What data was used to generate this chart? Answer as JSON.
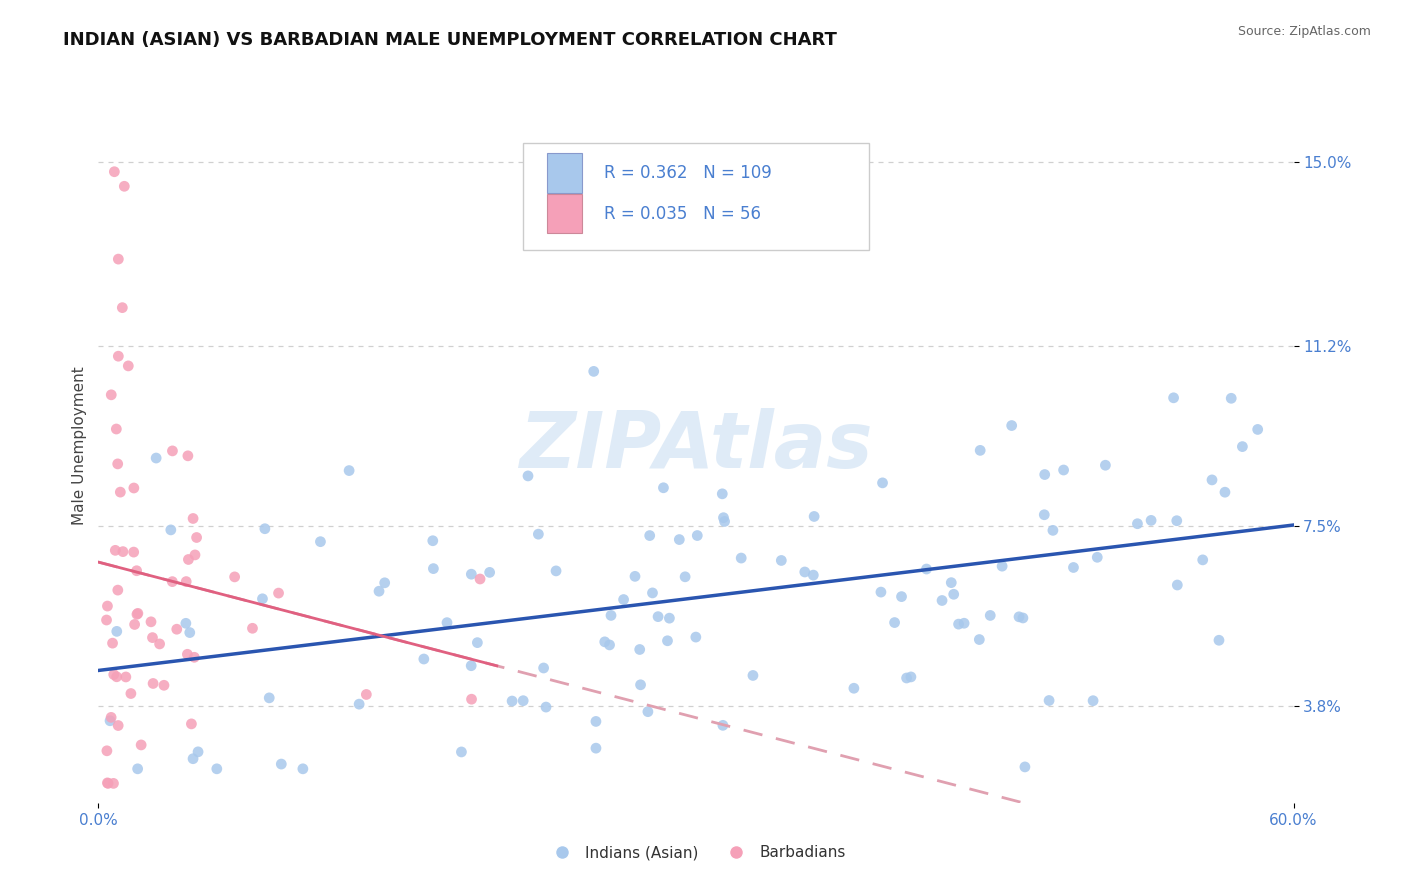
{
  "title": "INDIAN (ASIAN) VS BARBADIAN MALE UNEMPLOYMENT CORRELATION CHART",
  "source_text": "Source: ZipAtlas.com",
  "ylabel": "Male Unemployment",
  "xlim": [
    0.0,
    0.6
  ],
  "ylim": [
    0.018,
    0.165
  ],
  "ytick_vals": [
    0.038,
    0.075,
    0.112,
    0.15
  ],
  "ytick_labels": [
    "3.8%",
    "7.5%",
    "11.2%",
    "15.0%"
  ],
  "grid_color": "#d0d0d0",
  "background_color": "#ffffff",
  "indian_color": "#a8c8ec",
  "barbadian_color": "#f5a0b8",
  "indian_line_color": "#2a55b0",
  "barbadian_line_color": "#e06080",
  "barbadian_dash_color": "#e0a0b0",
  "legend_R1": "0.362",
  "legend_N1": "109",
  "legend_R2": "0.035",
  "legend_N2": "56",
  "legend_label1": "Indians (Asian)",
  "legend_label2": "Barbadians",
  "watermark": "ZIPAtlas",
  "title_fontsize": 13,
  "axis_label_fontsize": 11,
  "tick_fontsize": 11,
  "tick_color": "#4a7fd0"
}
